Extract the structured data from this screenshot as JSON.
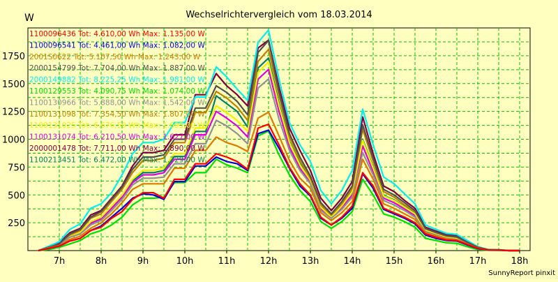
{
  "chart_data": {
    "type": "line",
    "title": "Wechselrichtervergleich vom 18.03.2014",
    "ylabel": "W",
    "xlabel": "",
    "footer": "SunnyReport pinxit",
    "xlim": [
      6.25,
      18.25
    ],
    "ylim": [
      0,
      2000
    ],
    "x_ticks": [
      {
        "v": 7,
        "label": "7h"
      },
      {
        "v": 8,
        "label": "8h"
      },
      {
        "v": 9,
        "label": "9h"
      },
      {
        "v": 10,
        "label": "10h"
      },
      {
        "v": 11,
        "label": "11h"
      },
      {
        "v": 12,
        "label": "12h"
      },
      {
        "v": 13,
        "label": "13h"
      },
      {
        "v": 14,
        "label": "14h"
      },
      {
        "v": 15,
        "label": "15h"
      },
      {
        "v": 16,
        "label": "16h"
      },
      {
        "v": 17,
        "label": "17h"
      },
      {
        "v": 18,
        "label": "18h"
      }
    ],
    "y_ticks": [
      {
        "v": 250,
        "label": "250"
      },
      {
        "v": 500,
        "label": "500"
      },
      {
        "v": 750,
        "label": "750"
      },
      {
        "v": 1000,
        "label": "1000"
      },
      {
        "v": 1250,
        "label": "1250"
      },
      {
        "v": 1500,
        "label": "1500"
      },
      {
        "v": 1750,
        "label": "1750"
      }
    ],
    "grid": true,
    "legend_position": "top-left",
    "x": [
      6.5,
      6.75,
      7.0,
      7.25,
      7.5,
      7.75,
      8.0,
      8.25,
      8.5,
      8.75,
      9.0,
      9.25,
      9.5,
      9.75,
      10.0,
      10.25,
      10.5,
      10.75,
      11.0,
      11.25,
      11.5,
      11.75,
      12.0,
      12.25,
      12.5,
      12.75,
      13.0,
      13.25,
      13.5,
      13.75,
      14.0,
      14.25,
      14.5,
      14.75,
      15.0,
      15.25,
      15.5,
      15.75,
      16.0,
      16.25,
      16.5,
      16.75,
      17.0,
      17.25,
      17.5,
      17.75,
      18.0
    ],
    "series": [
      {
        "name": "1100096436 Tot: 4.610,00 Wh Max: 1.135,00 W",
        "color": "#ff0000",
        "values": [
          0,
          20,
          40,
          85,
          110,
          180,
          210,
          290,
          350,
          460,
          520,
          520,
          470,
          640,
          640,
          780,
          780,
          870,
          840,
          800,
          730,
          1100,
          1135,
          950,
          750,
          600,
          500,
          300,
          230,
          300,
          400,
          700,
          580,
          380,
          340,
          300,
          250,
          150,
          120,
          95,
          90,
          55,
          20,
          5,
          5,
          0,
          0
        ]
      },
      {
        "name": "1100096541 Tot: 4.461,00 Wh Max: 1.082,00 W",
        "color": "#0000e0",
        "values": [
          0,
          20,
          40,
          85,
          110,
          180,
          220,
          300,
          380,
          470,
          510,
          500,
          460,
          620,
          620,
          760,
          760,
          840,
          800,
          780,
          720,
          1050,
          1082,
          920,
          740,
          580,
          490,
          290,
          230,
          290,
          380,
          690,
          560,
          370,
          330,
          290,
          240,
          140,
          110,
          90,
          85,
          50,
          18,
          5,
          4,
          0,
          0
        ]
      },
      {
        "name": "2001S0622 Tot: 5.107,50 Wh Max: 1.243,00 W",
        "color": "#e07800",
        "values": [
          0,
          25,
          45,
          100,
          130,
          200,
          250,
          330,
          430,
          550,
          600,
          600,
          600,
          740,
          740,
          900,
          900,
          1020,
          970,
          940,
          890,
          1190,
          1243,
          1030,
          810,
          650,
          560,
          340,
          270,
          340,
          440,
          820,
          640,
          420,
          380,
          330,
          280,
          160,
          130,
          105,
          95,
          60,
          22,
          6,
          5,
          0,
          0
        ]
      },
      {
        "name": "2000154799 Tot: 7.704,00 Wh Max: 1.887,00 W",
        "color": "#505050",
        "values": [
          0,
          30,
          60,
          150,
          190,
          300,
          350,
          460,
          570,
          730,
          840,
          840,
          860,
          1000,
          1000,
          1280,
          1280,
          1480,
          1420,
          1340,
          1220,
          1780,
          1887,
          1430,
          1050,
          840,
          670,
          430,
          330,
          440,
          580,
          1130,
          830,
          550,
          500,
          430,
          360,
          200,
          165,
          135,
          125,
          75,
          30,
          8,
          6,
          0,
          0
        ]
      },
      {
        "name": "2000149882 Tot: 8.225,25 Wh Max: 1.981,00 W",
        "color": "#00f0f0",
        "values": [
          0,
          40,
          80,
          190,
          240,
          380,
          420,
          520,
          680,
          870,
          970,
          970,
          1000,
          1150,
          1150,
          1380,
          1380,
          1650,
          1560,
          1450,
          1350,
          1870,
          1981,
          1540,
          1150,
          950,
          800,
          540,
          420,
          540,
          720,
          1270,
          950,
          660,
          600,
          510,
          420,
          230,
          190,
          155,
          145,
          90,
          35,
          10,
          8,
          0,
          0
        ]
      },
      {
        "name": "1100129553 Tot: 4.090,75 Wh Max: 1.074,00 W",
        "color": "#00e000",
        "values": [
          0,
          10,
          30,
          60,
          90,
          150,
          180,
          230,
          300,
          410,
          470,
          470,
          480,
          610,
          610,
          700,
          700,
          820,
          770,
          740,
          700,
          1030,
          1074,
          860,
          680,
          540,
          440,
          260,
          200,
          260,
          350,
          640,
          500,
          330,
          300,
          260,
          210,
          110,
          90,
          70,
          65,
          35,
          10,
          3,
          2,
          0,
          0
        ]
      },
      {
        "name": "1100130966 Tot: 5.888,00 Wh Max: 1.542,00 W",
        "color": "#909090",
        "values": [
          0,
          25,
          50,
          120,
          150,
          230,
          270,
          360,
          460,
          590,
          650,
          650,
          660,
          780,
          780,
          960,
          960,
          1170,
          1120,
          1050,
          960,
          1460,
          1542,
          1180,
          900,
          720,
          600,
          360,
          290,
          370,
          480,
          880,
          680,
          450,
          410,
          360,
          300,
          170,
          140,
          110,
          100,
          65,
          24,
          7,
          5,
          0,
          0
        ]
      },
      {
        "name": "1100131098 Tot: 7.354,50 Wh Max: 1.807,00 W",
        "color": "#c08000",
        "values": [
          0,
          30,
          60,
          140,
          180,
          290,
          330,
          440,
          550,
          700,
          810,
          810,
          830,
          970,
          970,
          1240,
          1240,
          1430,
          1370,
          1290,
          1170,
          1700,
          1807,
          1390,
          1020,
          810,
          650,
          410,
          320,
          420,
          560,
          1090,
          800,
          530,
          480,
          410,
          350,
          195,
          160,
          130,
          120,
          72,
          28,
          8,
          6,
          0,
          0
        ]
      },
      {
        "name": "1100131025 Tot: 6.676,50 Wh Max: 1.695,00 W",
        "color": "#f0f000",
        "values": [
          0,
          28,
          55,
          130,
          165,
          260,
          300,
          400,
          500,
          640,
          720,
          720,
          740,
          870,
          870,
          1100,
          1100,
          1300,
          1240,
          1170,
          1070,
          1600,
          1695,
          1300,
          970,
          770,
          630,
          390,
          300,
          400,
          530,
          990,
          740,
          490,
          450,
          390,
          330,
          185,
          150,
          120,
          110,
          70,
          26,
          7,
          5,
          0,
          0
        ]
      },
      {
        "name": "1100131074 Tot: 6.210,50 Wh Max: 1.627,00 W",
        "color": "#e000e0",
        "values": [
          0,
          26,
          52,
          125,
          158,
          245,
          285,
          380,
          480,
          610,
          680,
          680,
          700,
          820,
          820,
          1040,
          1040,
          1250,
          1190,
          1120,
          1020,
          1540,
          1627,
          1250,
          930,
          740,
          610,
          375,
          295,
          385,
          500,
          940,
          710,
          470,
          430,
          375,
          315,
          178,
          145,
          115,
          105,
          68,
          25,
          7,
          5,
          0,
          0
        ]
      },
      {
        "name": "2000001478 Tot: 7.711,00 Wh Max: 1.890,00 W",
        "color": "#800040",
        "values": [
          0,
          35,
          70,
          160,
          200,
          320,
          360,
          470,
          580,
          760,
          880,
          880,
          900,
          1040,
          1040,
          1400,
          1400,
          1590,
          1480,
          1400,
          1300,
          1820,
          1890,
          1470,
          1100,
          900,
          720,
          470,
          360,
          470,
          620,
          1200,
          870,
          580,
          530,
          450,
          380,
          210,
          175,
          145,
          135,
          80,
          32,
          9,
          7,
          0,
          0
        ]
      },
      {
        "name": "1100213451 Tot: 6.472,00 Wh Max: 1.729,00 W",
        "color": "#008060",
        "values": [
          0,
          27,
          54,
          128,
          162,
          252,
          292,
          390,
          490,
          625,
          700,
          700,
          720,
          845,
          845,
          1070,
          1070,
          1390,
          1320,
          1250,
          1110,
          1640,
          1729,
          1320,
          980,
          780,
          640,
          395,
          305,
          405,
          540,
          1000,
          750,
          495,
          455,
          395,
          335,
          188,
          152,
          122,
          112,
          71,
          27,
          7,
          5,
          0,
          0
        ]
      }
    ]
  }
}
